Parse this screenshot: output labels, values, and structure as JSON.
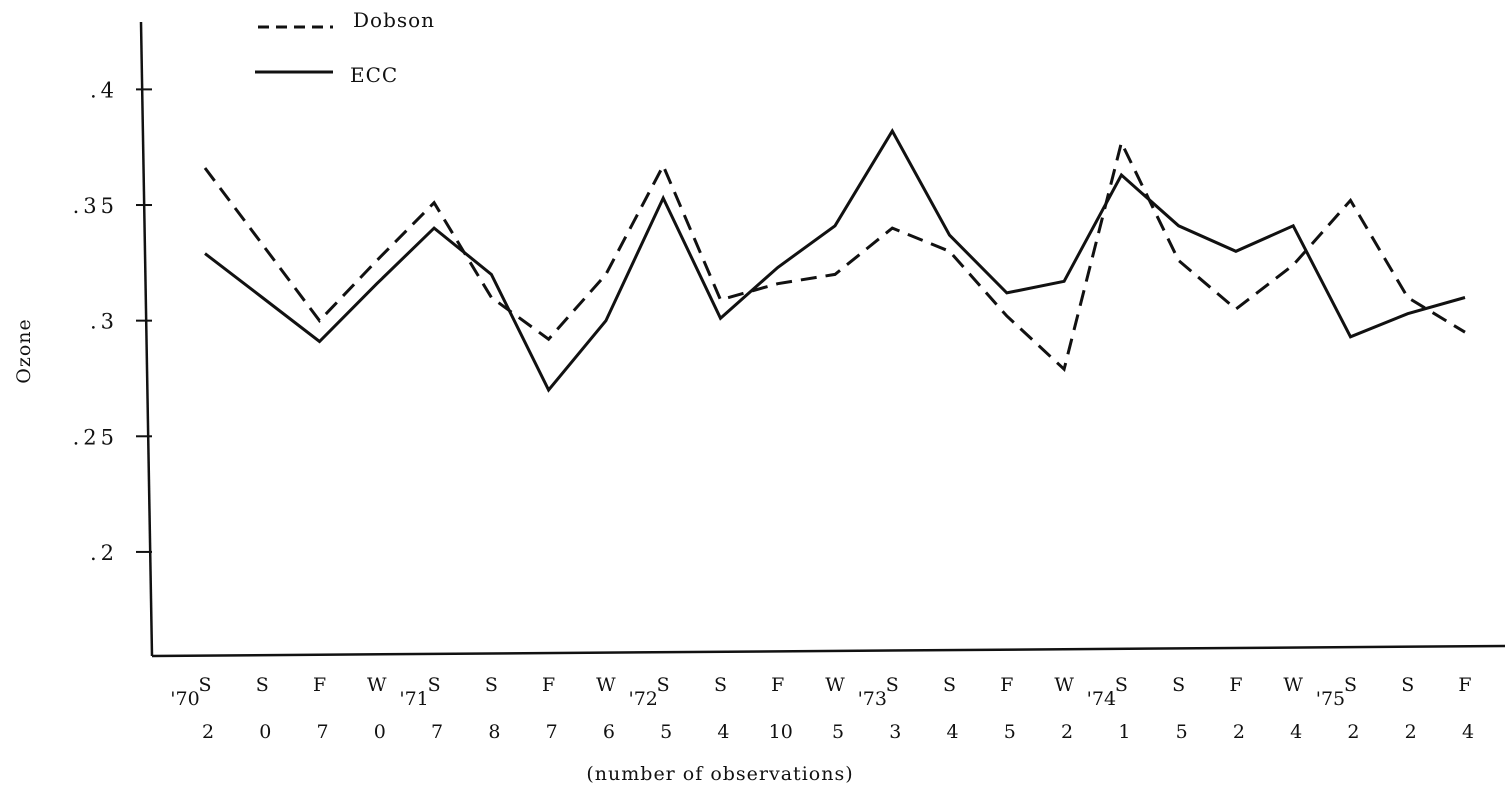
{
  "chart_data": {
    "type": "line",
    "ylabel": "Ozone",
    "xlabel": "(number of observations)",
    "ylim": [
      0.155,
      0.43
    ],
    "y_ticks": [
      {
        "value": 0.4,
        "label": ".4"
      },
      {
        "value": 0.35,
        "label": ".35"
      },
      {
        "value": 0.3,
        "label": ".3"
      },
      {
        "value": 0.25,
        "label": ".25"
      },
      {
        "value": 0.2,
        "label": ".2"
      }
    ],
    "categories": [
      "S",
      "S",
      "F",
      "W",
      "S",
      "S",
      "F",
      "W",
      "S",
      "S",
      "F",
      "W",
      "S",
      "S",
      "F",
      "W",
      "S",
      "S",
      "F",
      "W",
      "S",
      "S",
      "F"
    ],
    "observations": [
      "2",
      "0",
      "7",
      "0",
      "7",
      "8",
      "7",
      "6",
      "5",
      "4",
      "10",
      "5",
      "3",
      "4",
      "5",
      "2",
      "1",
      "5",
      "2",
      "4",
      "2",
      "2",
      "4"
    ],
    "year_labels": [
      {
        "index": 0,
        "label": "'70"
      },
      {
        "index": 4,
        "label": "'71"
      },
      {
        "index": 8,
        "label": "'72"
      },
      {
        "index": 12,
        "label": "'73"
      },
      {
        "index": 16,
        "label": "'74"
      },
      {
        "index": 20,
        "label": "'75"
      }
    ],
    "series": [
      {
        "name": "Dobson",
        "style": "dashed",
        "values": [
          0.366,
          0.333,
          0.3,
          0.326,
          0.351,
          0.31,
          0.292,
          0.32,
          0.367,
          0.309,
          0.316,
          0.32,
          0.34,
          0.33,
          0.302,
          0.279,
          0.377,
          0.326,
          0.305,
          0.324,
          0.352,
          0.31,
          0.295
        ]
      },
      {
        "name": "ECC",
        "style": "solid",
        "values": [
          0.329,
          0.31,
          0.291,
          0.316,
          0.34,
          0.32,
          0.27,
          0.3,
          0.353,
          0.301,
          0.323,
          0.341,
          0.382,
          0.337,
          0.312,
          0.317,
          0.363,
          0.341,
          0.33,
          0.341,
          0.293,
          0.303,
          0.31
        ]
      }
    ],
    "legend_position": "top-left",
    "grid": false
  }
}
